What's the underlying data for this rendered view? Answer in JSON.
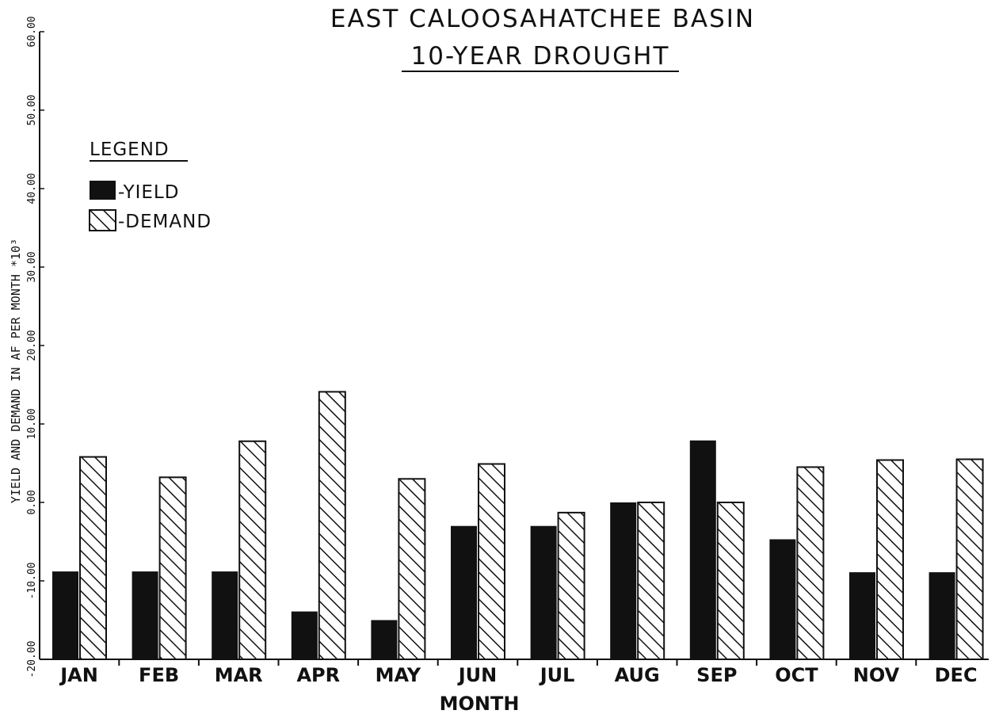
{
  "chart_data": {
    "type": "bar",
    "title": "EAST CALOOSAHATCHEE BASIN",
    "subtitle": "10-YEAR DROUGHT",
    "xlabel": "MONTH",
    "ylabel": "YIELD AND DEMAND IN AF PER MONTH *10³",
    "ylim": [
      -20,
      60
    ],
    "yticks": [
      "-20.00",
      "-10.00",
      "0.00",
      "10.00",
      "20.00",
      "30.00",
      "40.00",
      "50.00",
      "60.00"
    ],
    "grid": false,
    "legend": {
      "title": "LEGEND",
      "placement": "top-left"
    },
    "categories": [
      "JAN",
      "FEB",
      "MAR",
      "APR",
      "MAY",
      "JUN",
      "JUL",
      "AUG",
      "SEP",
      "OCT",
      "NOV",
      "DEC"
    ],
    "series": [
      {
        "name": "-YIELD",
        "style": "solid",
        "color": "#111111",
        "values": [
          -8.8,
          -8.8,
          -8.8,
          -13.9,
          -15.0,
          -3.0,
          -3.0,
          0.0,
          7.9,
          -4.7,
          -8.9,
          -8.9
        ]
      },
      {
        "name": "-DEMAND",
        "style": "hatched",
        "color": "#111111",
        "values": [
          5.8,
          3.2,
          7.8,
          14.1,
          3.0,
          4.9,
          -1.3,
          0.0,
          0.0,
          4.5,
          5.4,
          5.5
        ]
      }
    ]
  }
}
